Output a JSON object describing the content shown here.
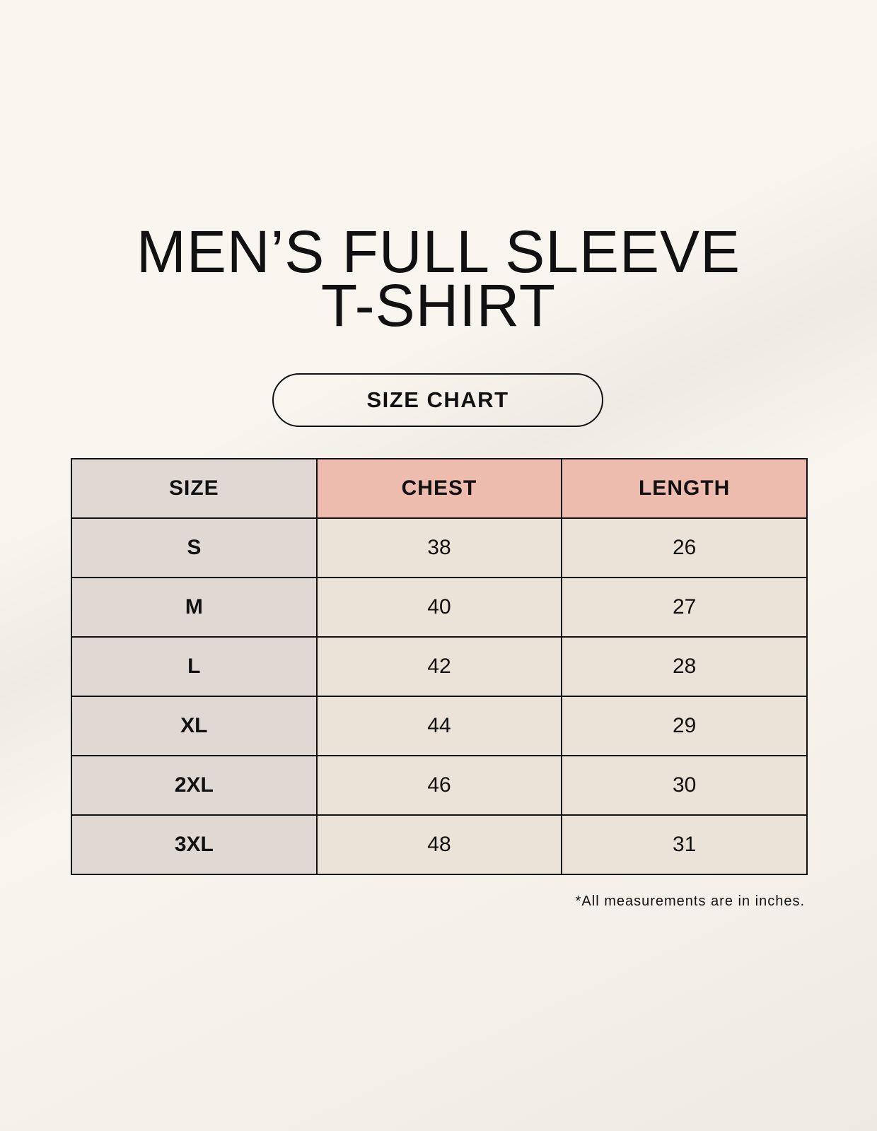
{
  "title": {
    "line1": "MEN’S FULL SLEEVE",
    "line2": "T-SHIRT"
  },
  "badge": "SIZE CHART",
  "table": {
    "headers": [
      "SIZE",
      "CHEST",
      "LENGTH"
    ],
    "rows": [
      [
        "S",
        "38",
        "26"
      ],
      [
        "M",
        "40",
        "27"
      ],
      [
        "L",
        "42",
        "28"
      ],
      [
        "XL",
        "44",
        "29"
      ],
      [
        "2XL",
        "46",
        "30"
      ],
      [
        "3XL",
        "48",
        "31"
      ]
    ]
  },
  "footnote": "*All measurements are in inches.",
  "colors": {
    "size_column": "#e0d9d3",
    "header_accent": "#edbcaf",
    "value_cells": "#ebe3d8"
  }
}
